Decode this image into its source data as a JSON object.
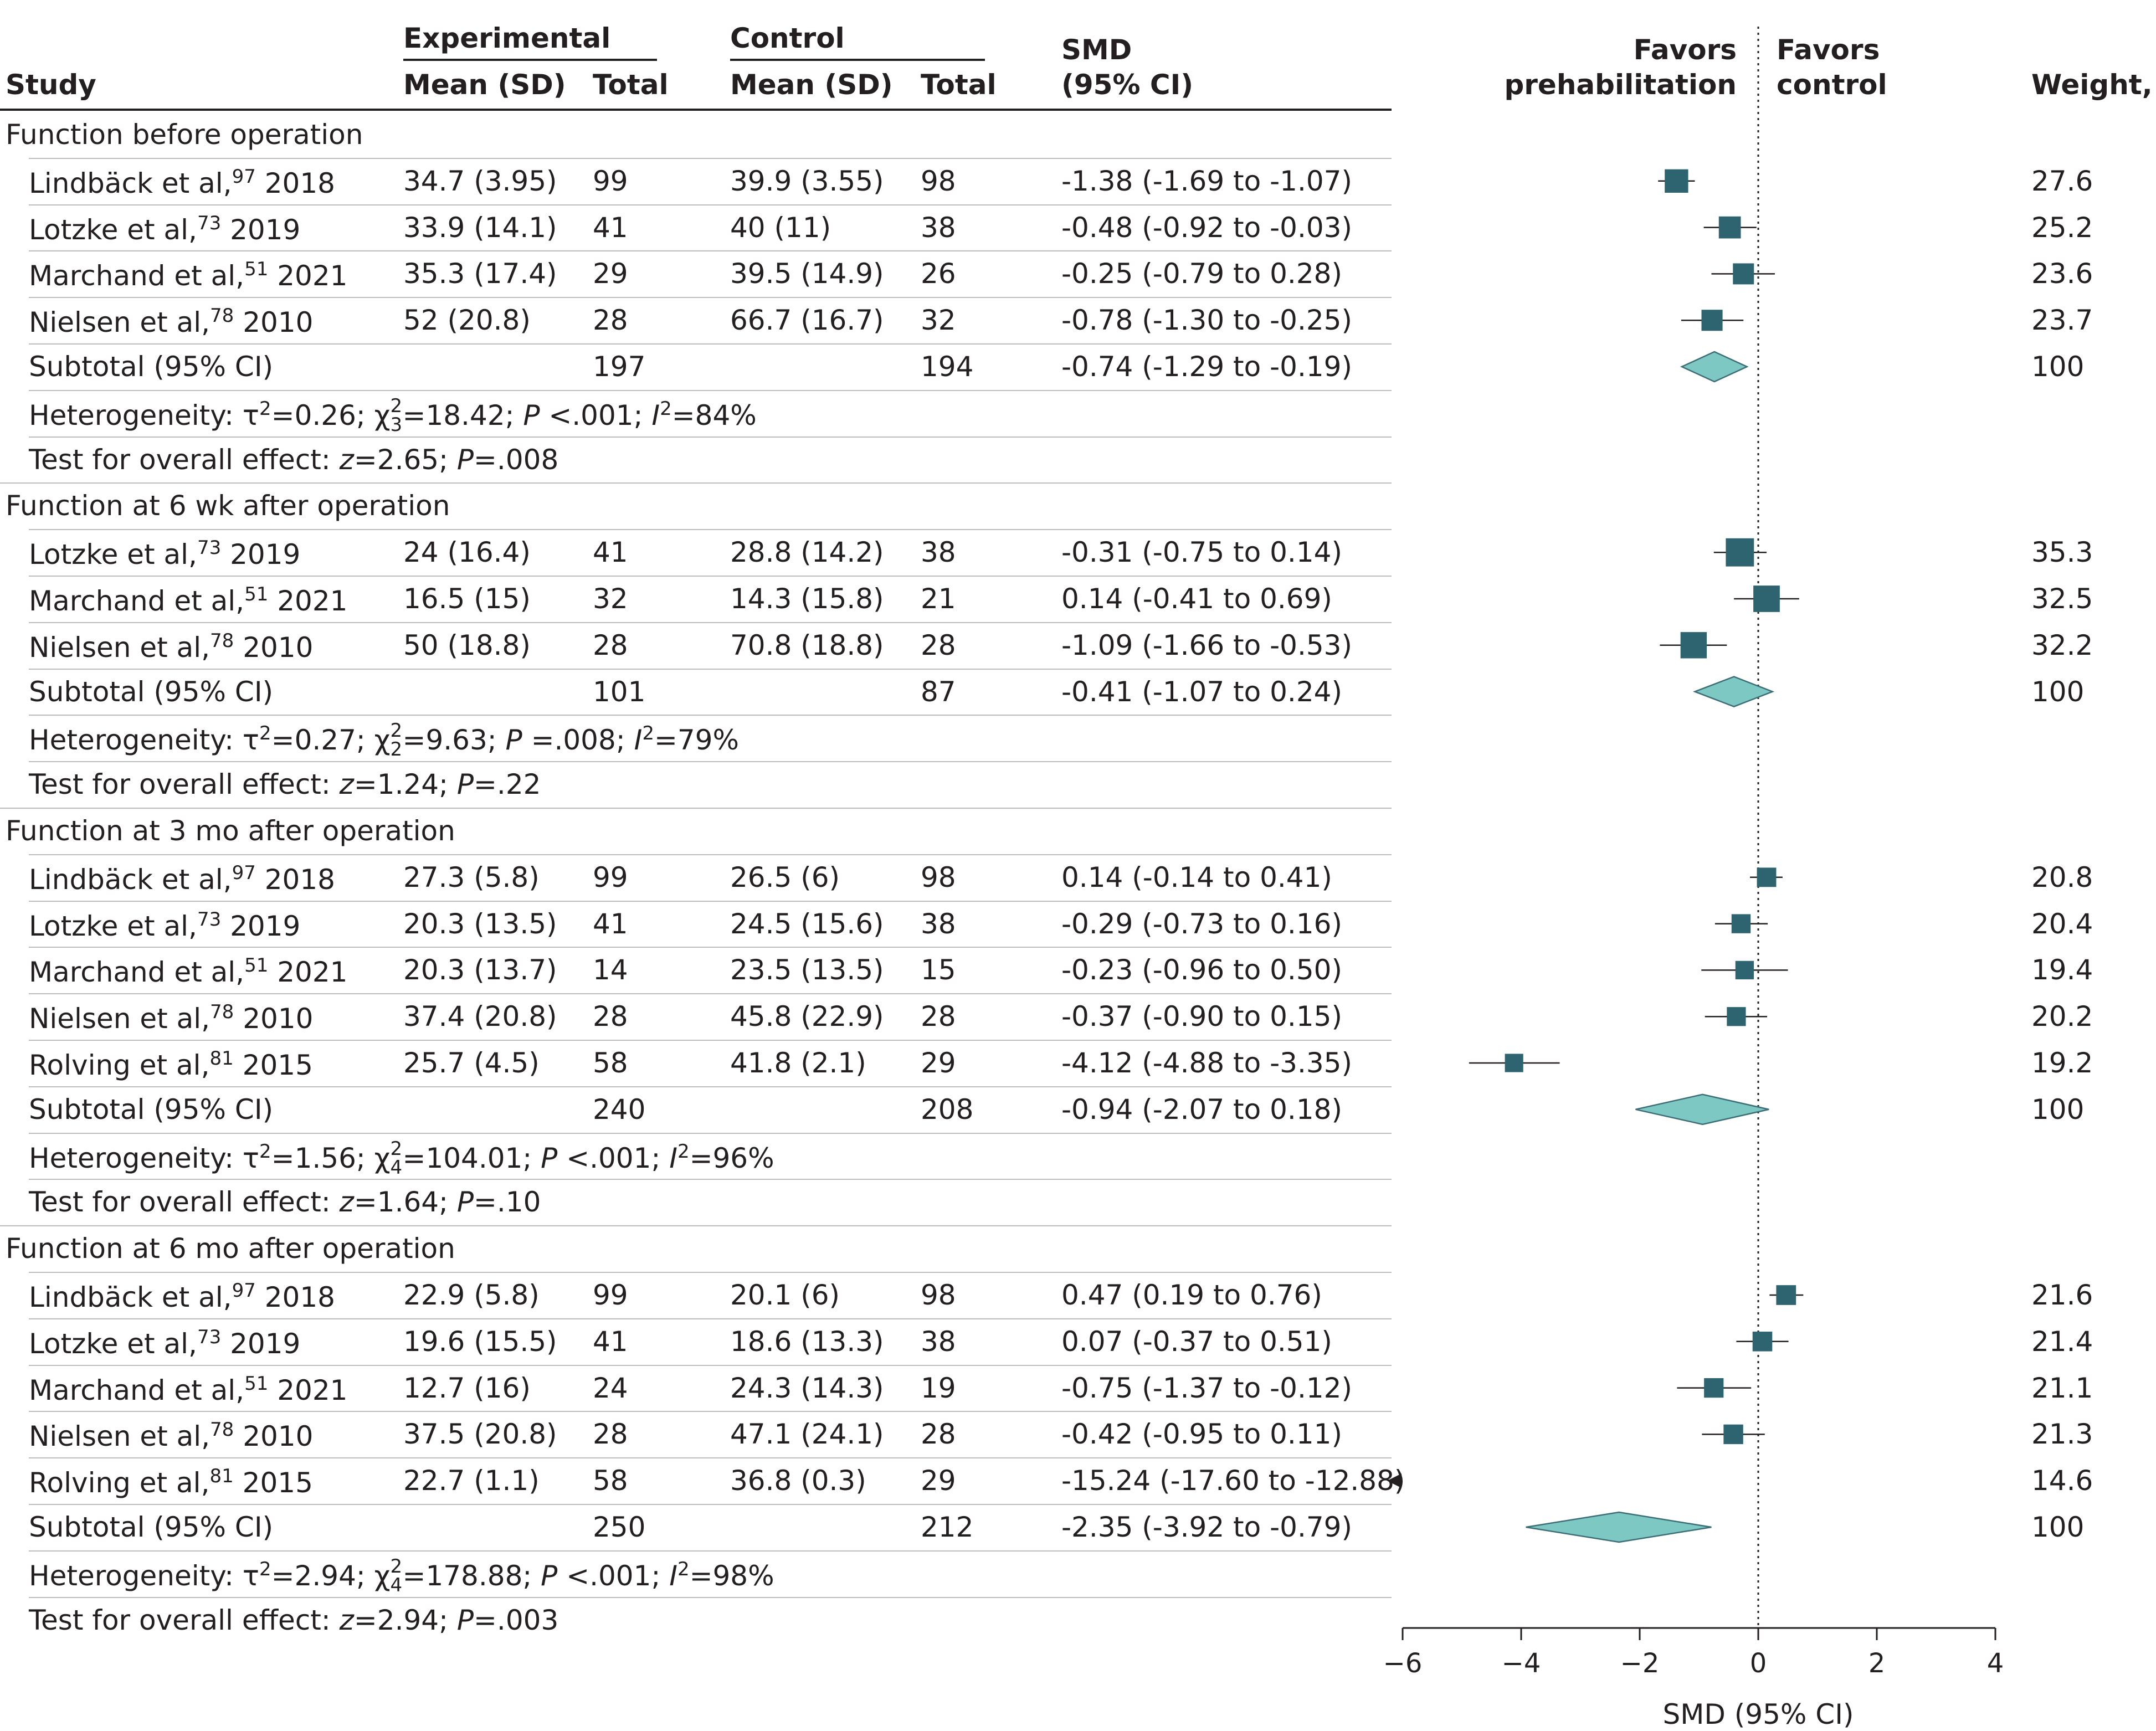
{
  "headers": {
    "study": "Study",
    "experimental": "Experimental",
    "control": "Control",
    "mean_sd": "Mean (SD)",
    "total": "Total",
    "smd_line1": "SMD",
    "smd_line2": "(95% CI)",
    "favors_left_1": "Favors",
    "favors_left_2": "prehabilitation",
    "favors_right_1": "Favors",
    "favors_right_2": "control",
    "weight": "Weight, %"
  },
  "colors": {
    "square": "#2e6470",
    "diamond": "#7ec8c4",
    "diamond_edge": "#3b6e75",
    "text": "#231f20",
    "rule": "#bdbdbd"
  },
  "groups": [
    {
      "title": "Function before operation",
      "studies": [
        {
          "author": "Lindbäck et al,",
          "ref": "97",
          "year": " 2018",
          "exp_mean": "34.7 (3.95)",
          "exp_total": "99",
          "ctl_mean": "39.9 (3.55)",
          "ctl_total": "98",
          "smd_text": "-1.38 (-1.69 to -1.07)",
          "smd": -1.38,
          "lo": -1.69,
          "hi": -1.07,
          "weight": "27.6",
          "w": 27.6
        },
        {
          "author": "Lotzke et al,",
          "ref": "73",
          "year": " 2019",
          "exp_mean": "33.9 (14.1)",
          "exp_total": "41",
          "ctl_mean": "40 (11)",
          "ctl_total": "38",
          "smd_text": "-0.48 (-0.92 to -0.03)",
          "smd": -0.48,
          "lo": -0.92,
          "hi": -0.03,
          "weight": "25.2",
          "w": 25.2
        },
        {
          "author": "Marchand et al,",
          "ref": "51",
          "year": " 2021",
          "exp_mean": "35.3 (17.4)",
          "exp_total": "29",
          "ctl_mean": "39.5 (14.9)",
          "ctl_total": "26",
          "smd_text": "-0.25 (-0.79 to 0.28)",
          "smd": -0.25,
          "lo": -0.79,
          "hi": 0.28,
          "weight": "23.6",
          "w": 23.6
        },
        {
          "author": "Nielsen et al,",
          "ref": "78",
          "year": " 2010",
          "exp_mean": "52 (20.8)",
          "exp_total": "28",
          "ctl_mean": "66.7 (16.7)",
          "ctl_total": "32",
          "smd_text": "-0.78 (-1.30 to -0.25)",
          "smd": -0.78,
          "lo": -1.3,
          "hi": -0.25,
          "weight": "23.7",
          "w": 23.7
        }
      ],
      "subtotal": {
        "label": "Subtotal (95% CI)",
        "exp_total": "197",
        "ctl_total": "194",
        "smd_text": "-0.74 (-1.29 to -0.19)",
        "smd": -0.74,
        "lo": -1.29,
        "hi": -0.19,
        "weight": "100"
      },
      "heterogeneity": {
        "label": "Heterogeneity: ",
        "tau2": "0.26",
        "df": "3",
        "chi2": "18.42",
        "p": "<.001",
        "i2": "84%"
      },
      "overall": {
        "label": "Test for overall effect: ",
        "z": "2.65",
        "p": ".008"
      }
    },
    {
      "title": "Function at 6 wk after operation",
      "studies": [
        {
          "author": "Lotzke et al,",
          "ref": "73",
          "year": " 2019",
          "exp_mean": "24 (16.4)",
          "exp_total": "41",
          "ctl_mean": "28.8 (14.2)",
          "ctl_total": "38",
          "smd_text": "-0.31 (-0.75 to 0.14)",
          "smd": -0.31,
          "lo": -0.75,
          "hi": 0.14,
          "weight": "35.3",
          "w": 35.3
        },
        {
          "author": "Marchand et al,",
          "ref": "51",
          "year": " 2021",
          "exp_mean": "16.5 (15)",
          "exp_total": "32",
          "ctl_mean": "14.3 (15.8)",
          "ctl_total": "21",
          "smd_text": "0.14 (-0.41 to 0.69)",
          "smd": 0.14,
          "lo": -0.41,
          "hi": 0.69,
          "weight": "32.5",
          "w": 32.5
        },
        {
          "author": "Nielsen et al,",
          "ref": "78",
          "year": " 2010",
          "exp_mean": "50 (18.8)",
          "exp_total": "28",
          "ctl_mean": "70.8 (18.8)",
          "ctl_total": "28",
          "smd_text": "-1.09 (-1.66 to -0.53)",
          "smd": -1.09,
          "lo": -1.66,
          "hi": -0.53,
          "weight": "32.2",
          "w": 32.2
        }
      ],
      "subtotal": {
        "label": "Subtotal (95% CI)",
        "exp_total": "101",
        "ctl_total": "87",
        "smd_text": "-0.41 (-1.07 to 0.24)",
        "smd": -0.41,
        "lo": -1.07,
        "hi": 0.24,
        "weight": "100"
      },
      "heterogeneity": {
        "label": "Heterogeneity: ",
        "tau2": "0.27",
        "df": "2",
        "chi2": "9.63",
        "p": "=.008",
        "i2": "79%"
      },
      "overall": {
        "label": "Test for overall effect: ",
        "z": "1.24",
        "p": ".22"
      }
    },
    {
      "title": "Function at 3 mo after operation",
      "studies": [
        {
          "author": "Lindbäck et al,",
          "ref": "97",
          "year": " 2018",
          "exp_mean": "27.3 (5.8)",
          "exp_total": "99",
          "ctl_mean": "26.5 (6)",
          "ctl_total": "98",
          "smd_text": "0.14 (-0.14 to 0.41)",
          "smd": 0.14,
          "lo": -0.14,
          "hi": 0.41,
          "weight": "20.8",
          "w": 20.8
        },
        {
          "author": "Lotzke et al,",
          "ref": "73",
          "year": " 2019",
          "exp_mean": "20.3 (13.5)",
          "exp_total": "41",
          "ctl_mean": "24.5 (15.6)",
          "ctl_total": "38",
          "smd_text": "-0.29 (-0.73 to 0.16)",
          "smd": -0.29,
          "lo": -0.73,
          "hi": 0.16,
          "weight": "20.4",
          "w": 20.4
        },
        {
          "author": "Marchand et al,",
          "ref": "51",
          "year": " 2021",
          "exp_mean": "20.3 (13.7)",
          "exp_total": "14",
          "ctl_mean": "23.5 (13.5)",
          "ctl_total": "15",
          "smd_text": "-0.23 (-0.96 to 0.50)",
          "smd": -0.23,
          "lo": -0.96,
          "hi": 0.5,
          "weight": "19.4",
          "w": 19.4
        },
        {
          "author": "Nielsen et al,",
          "ref": "78",
          "year": " 2010",
          "exp_mean": "37.4 (20.8)",
          "exp_total": "28",
          "ctl_mean": "45.8 (22.9)",
          "ctl_total": "28",
          "smd_text": "-0.37 (-0.90 to 0.15)",
          "smd": -0.37,
          "lo": -0.9,
          "hi": 0.15,
          "weight": "20.2",
          "w": 20.2
        },
        {
          "author": "Rolving et al,",
          "ref": "81",
          "year": " 2015",
          "exp_mean": "25.7 (4.5)",
          "exp_total": "58",
          "ctl_mean": "41.8 (2.1)",
          "ctl_total": "29",
          "smd_text": "-4.12 (-4.88 to -3.35)",
          "smd": -4.12,
          "lo": -4.88,
          "hi": -3.35,
          "weight": "19.2",
          "w": 19.2
        }
      ],
      "subtotal": {
        "label": "Subtotal (95% CI)",
        "exp_total": "240",
        "ctl_total": "208",
        "smd_text": "-0.94 (-2.07 to 0.18)",
        "smd": -0.94,
        "lo": -2.07,
        "hi": 0.18,
        "weight": "100"
      },
      "heterogeneity": {
        "label": "Heterogeneity: ",
        "tau2": "1.56",
        "df": "4",
        "chi2": "104.01",
        "p": "<.001",
        "i2": "96%"
      },
      "overall": {
        "label": "Test for overall effect: ",
        "z": "1.64",
        "p": ".10"
      }
    },
    {
      "title": "Function at 6 mo after operation",
      "studies": [
        {
          "author": "Lindbäck et al,",
          "ref": "97",
          "year": " 2018",
          "exp_mean": "22.9 (5.8)",
          "exp_total": "99",
          "ctl_mean": "20.1 (6)",
          "ctl_total": "98",
          "smd_text": "0.47 (0.19 to 0.76)",
          "smd": 0.47,
          "lo": 0.19,
          "hi": 0.76,
          "weight": "21.6",
          "w": 21.6
        },
        {
          "author": "Lotzke et al,",
          "ref": "73",
          "year": " 2019",
          "exp_mean": "19.6 (15.5)",
          "exp_total": "41",
          "ctl_mean": "18.6 (13.3)",
          "ctl_total": "38",
          "smd_text": "0.07 (-0.37 to 0.51)",
          "smd": 0.07,
          "lo": -0.37,
          "hi": 0.51,
          "weight": "21.4",
          "w": 21.4
        },
        {
          "author": "Marchand et al,",
          "ref": "51",
          "year": " 2021",
          "exp_mean": "12.7 (16)",
          "exp_total": "24",
          "ctl_mean": "24.3 (14.3)",
          "ctl_total": "19",
          "smd_text": "-0.75 (-1.37 to -0.12)",
          "smd": -0.75,
          "lo": -1.37,
          "hi": -0.12,
          "weight": "21.1",
          "w": 21.1
        },
        {
          "author": "Nielsen et al,",
          "ref": "78",
          "year": " 2010",
          "exp_mean": "37.5 (20.8)",
          "exp_total": "28",
          "ctl_mean": "47.1 (24.1)",
          "ctl_total": "28",
          "smd_text": "-0.42 (-0.95 to 0.11)",
          "smd": -0.42,
          "lo": -0.95,
          "hi": 0.11,
          "weight": "21.3",
          "w": 21.3
        },
        {
          "author": "Rolving et al,",
          "ref": "81",
          "year": " 2015",
          "exp_mean": "22.7 (1.1)",
          "exp_total": "58",
          "ctl_mean": "36.8 (0.3)",
          "ctl_total": "29",
          "smd_text": "-15.24 (-17.60 to -12.88)",
          "smd": -15.24,
          "lo": -17.6,
          "hi": -12.88,
          "weight": "14.6",
          "w": 14.6,
          "offscale": true
        }
      ],
      "subtotal": {
        "label": "Subtotal (95% CI)",
        "exp_total": "250",
        "ctl_total": "212",
        "smd_text": "-2.35 (-3.92 to -0.79)",
        "smd": -2.35,
        "lo": -3.92,
        "hi": -0.79,
        "weight": "100"
      },
      "heterogeneity": {
        "label": "Heterogeneity: ",
        "tau2": "2.94",
        "df": "4",
        "chi2": "178.88",
        "p": "<.001",
        "i2": "98%"
      },
      "overall": {
        "label": "Test for overall effect: ",
        "z": "2.94",
        "p": ".003"
      }
    }
  ],
  "chart_data": {
    "type": "forest",
    "xlabel": "SMD (95% CI)",
    "xlim": [
      -6,
      4
    ],
    "xticks": [
      -6,
      -4,
      -2,
      0,
      2,
      4
    ],
    "reference_line": 0,
    "left_label": "Favors prehabilitation",
    "right_label": "Favors control",
    "series": [
      {
        "name": "Function before operation",
        "points": [
          {
            "study": "Lindbäck et al 2018",
            "smd": -1.38,
            "lo": -1.69,
            "hi": -1.07,
            "weight": 27.6
          },
          {
            "study": "Lotzke et al 2019",
            "smd": -0.48,
            "lo": -0.92,
            "hi": -0.03,
            "weight": 25.2
          },
          {
            "study": "Marchand et al 2021",
            "smd": -0.25,
            "lo": -0.79,
            "hi": 0.28,
            "weight": 23.6
          },
          {
            "study": "Nielsen et al 2010",
            "smd": -0.78,
            "lo": -1.3,
            "hi": -0.25,
            "weight": 23.7
          }
        ],
        "subtotal": {
          "smd": -0.74,
          "lo": -1.29,
          "hi": -0.19
        }
      },
      {
        "name": "Function at 6 wk after operation",
        "points": [
          {
            "study": "Lotzke et al 2019",
            "smd": -0.31,
            "lo": -0.75,
            "hi": 0.14,
            "weight": 35.3
          },
          {
            "study": "Marchand et al 2021",
            "smd": 0.14,
            "lo": -0.41,
            "hi": 0.69,
            "weight": 32.5
          },
          {
            "study": "Nielsen et al 2010",
            "smd": -1.09,
            "lo": -1.66,
            "hi": -0.53,
            "weight": 32.2
          }
        ],
        "subtotal": {
          "smd": -0.41,
          "lo": -1.07,
          "hi": 0.24
        }
      },
      {
        "name": "Function at 3 mo after operation",
        "points": [
          {
            "study": "Lindbäck et al 2018",
            "smd": 0.14,
            "lo": -0.14,
            "hi": 0.41,
            "weight": 20.8
          },
          {
            "study": "Lotzke et al 2019",
            "smd": -0.29,
            "lo": -0.73,
            "hi": 0.16,
            "weight": 20.4
          },
          {
            "study": "Marchand et al 2021",
            "smd": -0.23,
            "lo": -0.96,
            "hi": 0.5,
            "weight": 19.4
          },
          {
            "study": "Nielsen et al 2010",
            "smd": -0.37,
            "lo": -0.9,
            "hi": 0.15,
            "weight": 20.2
          },
          {
            "study": "Rolving et al 2015",
            "smd": -4.12,
            "lo": -4.88,
            "hi": -3.35,
            "weight": 19.2
          }
        ],
        "subtotal": {
          "smd": -0.94,
          "lo": -2.07,
          "hi": 0.18
        }
      },
      {
        "name": "Function at 6 mo after operation",
        "points": [
          {
            "study": "Lindbäck et al 2018",
            "smd": 0.47,
            "lo": 0.19,
            "hi": 0.76,
            "weight": 21.6
          },
          {
            "study": "Lotzke et al 2019",
            "smd": 0.07,
            "lo": -0.37,
            "hi": 0.51,
            "weight": 21.4
          },
          {
            "study": "Marchand et al 2021",
            "smd": -0.75,
            "lo": -1.37,
            "hi": -0.12,
            "weight": 21.1
          },
          {
            "study": "Nielsen et al 2010",
            "smd": -0.42,
            "lo": -0.95,
            "hi": 0.11,
            "weight": 21.3
          },
          {
            "study": "Rolving et al 2015",
            "smd": -15.24,
            "lo": -17.6,
            "hi": -12.88,
            "weight": 14.6
          }
        ],
        "subtotal": {
          "smd": -2.35,
          "lo": -3.92,
          "hi": -0.79
        }
      }
    ]
  }
}
